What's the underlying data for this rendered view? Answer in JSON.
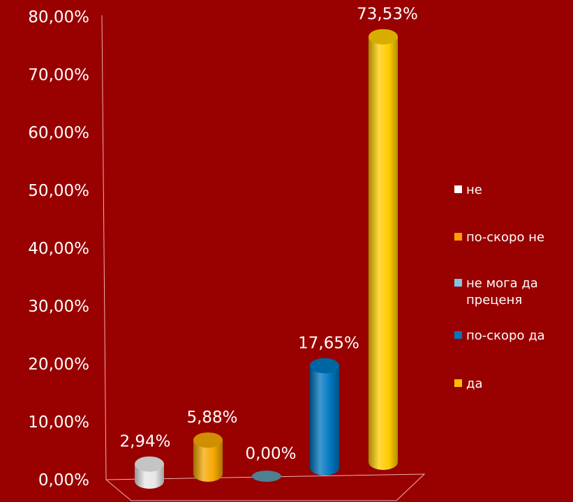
{
  "chart_data": {
    "type": "bar",
    "categories": [
      "не",
      "по-скоро не",
      "не мога да преценя",
      "по-скоро да",
      "да"
    ],
    "values": [
      2.94,
      5.88,
      0.0,
      17.65,
      73.53
    ],
    "value_labels": [
      "2,94%",
      "5,88%",
      "0,00%",
      "17,65%",
      "73,53%"
    ],
    "ylim": [
      0,
      80
    ],
    "y_ticks": [
      {
        "value": 0,
        "label": "0,00%"
      },
      {
        "value": 10,
        "label": "10,00%"
      },
      {
        "value": 20,
        "label": "20,00%"
      },
      {
        "value": 30,
        "label": "30,00%"
      },
      {
        "value": 40,
        "label": "40,00%"
      },
      {
        "value": 50,
        "label": "50,00%"
      },
      {
        "value": 60,
        "label": "60,00%"
      },
      {
        "value": 70,
        "label": "70,00%"
      },
      {
        "value": 80,
        "label": "80,00%"
      }
    ],
    "colors": [
      "#e6e6e6",
      "#f5a800",
      "#7ec8e3",
      "#0077c0",
      "#ffcc00"
    ],
    "legend": {
      "position": "right",
      "entries": [
        {
          "label_lines": [
            "не"
          ],
          "color": "#ffffff"
        },
        {
          "label_lines": [
            "по-скоро не"
          ],
          "color": "#ffa000"
        },
        {
          "label_lines": [
            "не мога да",
            "преценя"
          ],
          "color": "#7ec8e3"
        },
        {
          "label_lines": [
            "по-скоро да"
          ],
          "color": "#0077c0"
        },
        {
          "label_lines": [
            "да"
          ],
          "color": "#ffc000"
        }
      ]
    },
    "grid": false,
    "style": "3d-cylinder"
  }
}
